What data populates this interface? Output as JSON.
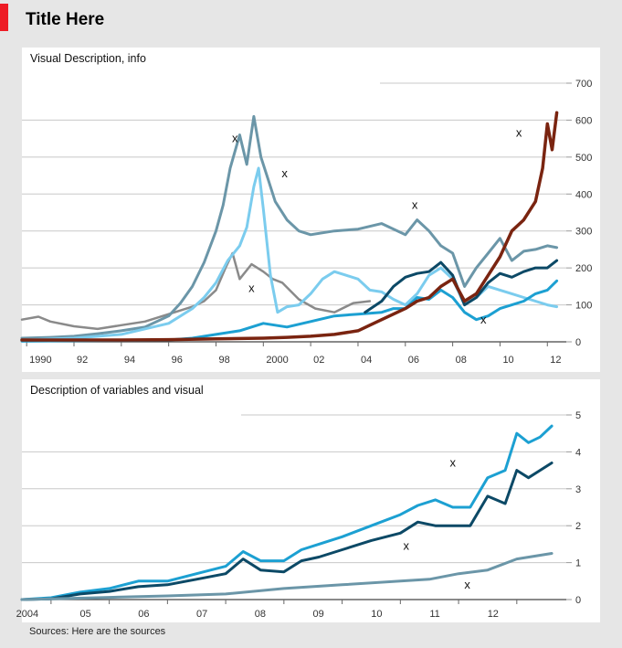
{
  "header": {
    "title": "Title Here",
    "accent_color": "#ee1c25"
  },
  "sources": "Sources: Here are the sources",
  "chart_data": [
    {
      "type": "line",
      "title": "Visual Description, info",
      "x_ticks": [
        "1990",
        "92",
        "94",
        "96",
        "98",
        "2000",
        "02",
        "04",
        "06",
        "08",
        "10",
        "12"
      ],
      "xlim": [
        1989.8,
        2012.8
      ],
      "ylim": [
        0,
        700
      ],
      "y_ticks": [
        0,
        100,
        200,
        300,
        400,
        500,
        600,
        700
      ],
      "grid": true,
      "series": [
        {
          "color": "#8a8a8a",
          "width": 2.5,
          "x": [
            1989.8,
            1990.5,
            1991,
            1992,
            1993,
            1994,
            1995,
            1996,
            1997,
            1997.5,
            1998,
            1998.4,
            1998.7,
            1999,
            1999.5,
            2000,
            2000.4,
            2000.8,
            2001.5,
            2002.2,
            2003,
            2003.8,
            2004.5
          ],
          "y": [
            60,
            68,
            55,
            42,
            35,
            45,
            55,
            75,
            95,
            110,
            140,
            200,
            240,
            170,
            210,
            190,
            170,
            160,
            115,
            90,
            80,
            105,
            110
          ]
        },
        {
          "color": "#6b96a8",
          "width": 3,
          "x": [
            1989.8,
            1991,
            1992,
            1993,
            1994,
            1995,
            1996,
            1996.5,
            1997,
            1997.5,
            1998,
            1998.3,
            1998.6,
            1999,
            1999.3,
            1999.6,
            1999.9,
            2000.2,
            2000.5,
            2001,
            2001.5,
            2002,
            2003,
            2004,
            2005,
            2006,
            2006.5,
            2007,
            2007.5,
            2008,
            2008.5,
            2009,
            2009.5,
            2010,
            2010.5,
            2011,
            2011.5,
            2012,
            2012.4
          ],
          "y": [
            10,
            12,
            15,
            22,
            30,
            40,
            70,
            105,
            150,
            215,
            300,
            370,
            470,
            560,
            480,
            610,
            500,
            440,
            380,
            330,
            300,
            290,
            300,
            305,
            320,
            290,
            330,
            300,
            260,
            240,
            150,
            200,
            240,
            280,
            220,
            245,
            250,
            260,
            255
          ]
        },
        {
          "color": "#7bccee",
          "width": 3,
          "x": [
            1989.8,
            1992,
            1994,
            1996,
            1997,
            1997.5,
            1998,
            1998.5,
            1999,
            1999.3,
            1999.6,
            1999.8,
            2000,
            2000.3,
            2000.6,
            2001,
            2001.5,
            2002,
            2002.5,
            2003,
            2003.5,
            2004,
            2004.5,
            2005,
            2005.5,
            2006,
            2006.5,
            2007,
            2007.5,
            2008,
            2008.5,
            2009,
            2009.5,
            2010,
            2010.5,
            2011,
            2011.5,
            2012,
            2012.4
          ],
          "y": [
            5,
            10,
            20,
            50,
            90,
            120,
            160,
            220,
            260,
            310,
            420,
            470,
            360,
            180,
            80,
            95,
            100,
            130,
            170,
            190,
            180,
            170,
            140,
            135,
            115,
            100,
            130,
            180,
            200,
            170,
            100,
            120,
            150,
            140,
            130,
            120,
            110,
            100,
            95
          ]
        },
        {
          "color": "#1ca0d2",
          "width": 3,
          "x": [
            1989.8,
            1996,
            1997,
            1998,
            1999,
            2000,
            2000.5,
            2001,
            2002,
            2003,
            2004,
            2005,
            2005.5,
            2006,
            2006.5,
            2007,
            2007.5,
            2008,
            2008.5,
            2009,
            2009.5,
            2010,
            2010.5,
            2011,
            2011.5,
            2012,
            2012.4
          ],
          "y": [
            2,
            5,
            10,
            20,
            30,
            50,
            45,
            40,
            55,
            70,
            75,
            80,
            90,
            90,
            120,
            115,
            140,
            120,
            80,
            60,
            70,
            90,
            100,
            110,
            130,
            140,
            165
          ]
        },
        {
          "color": "#0c4966",
          "width": 3,
          "x": [
            2004.3,
            2005,
            2005.5,
            2006,
            2006.5,
            2007,
            2007.5,
            2008,
            2008.5,
            2009,
            2009.5,
            2010,
            2010.5,
            2011,
            2011.5,
            2012,
            2012.4
          ],
          "y": [
            80,
            110,
            150,
            175,
            185,
            190,
            215,
            180,
            100,
            120,
            160,
            185,
            175,
            190,
            200,
            200,
            220
          ]
        },
        {
          "color": "#7a2410",
          "width": 3.5,
          "x": [
            1989.8,
            1992,
            1994,
            1996,
            1998,
            2000,
            2001,
            2002,
            2003,
            2004,
            2004.5,
            2005,
            2006,
            2006.5,
            2007,
            2007.5,
            2008,
            2008.5,
            2009,
            2009.5,
            2010,
            2010.5,
            2011,
            2011.5,
            2011.8,
            2012,
            2012.2,
            2012.4
          ],
          "y": [
            5,
            5,
            5,
            6,
            8,
            10,
            12,
            15,
            20,
            30,
            45,
            60,
            90,
            110,
            120,
            150,
            170,
            110,
            130,
            180,
            230,
            300,
            330,
            380,
            470,
            590,
            520,
            620
          ]
        }
      ],
      "annotations": [
        {
          "text": "x",
          "x": 1998.8,
          "y": 540
        },
        {
          "text": "x",
          "x": 2000.9,
          "y": 445
        },
        {
          "text": "x",
          "x": 1999.5,
          "y": 135
        },
        {
          "text": "x",
          "x": 2006.4,
          "y": 360
        },
        {
          "text": "x",
          "x": 2009.3,
          "y": 50
        },
        {
          "text": "x",
          "x": 2010.8,
          "y": 555
        }
      ]
    },
    {
      "type": "line",
      "title": "Description of variables and visual",
      "x_ticks": [
        "2004",
        "05",
        "06",
        "07",
        "08",
        "09",
        "10",
        "11",
        "12"
      ],
      "xlim": [
        2003.5,
        2012.85
      ],
      "ylim": [
        0,
        5
      ],
      "y_ticks": [
        0,
        1,
        2,
        3,
        4,
        5
      ],
      "grid": true,
      "series": [
        {
          "color": "#1ca0d2",
          "width": 3,
          "x": [
            2003.5,
            2004,
            2004.5,
            2005,
            2005.5,
            2006,
            2006.5,
            2007,
            2007.3,
            2007.6,
            2008,
            2008.3,
            2008.6,
            2009,
            2009.5,
            2010,
            2010.3,
            2010.6,
            2010.9,
            2011.2,
            2011.5,
            2011.8,
            2012,
            2012.2,
            2012.4,
            2012.6
          ],
          "y": [
            0,
            0.05,
            0.2,
            0.3,
            0.5,
            0.5,
            0.7,
            0.9,
            1.3,
            1.05,
            1.05,
            1.35,
            1.5,
            1.7,
            2.0,
            2.3,
            2.55,
            2.7,
            2.5,
            2.5,
            3.3,
            3.5,
            4.5,
            4.25,
            4.4,
            4.7
          ]
        },
        {
          "color": "#0c4966",
          "width": 3,
          "x": [
            2003.5,
            2004,
            2004.5,
            2005,
            2005.5,
            2006,
            2006.5,
            2007,
            2007.3,
            2007.6,
            2008,
            2008.3,
            2008.6,
            2009,
            2009.5,
            2010,
            2010.3,
            2010.6,
            2010.9,
            2011.2,
            2011.5,
            2011.8,
            2012,
            2012.2,
            2012.4,
            2012.6
          ],
          "y": [
            0,
            0.02,
            0.15,
            0.22,
            0.35,
            0.4,
            0.55,
            0.7,
            1.1,
            0.8,
            0.75,
            1.05,
            1.15,
            1.35,
            1.6,
            1.8,
            2.1,
            2.0,
            2.0,
            2.0,
            2.8,
            2.6,
            3.5,
            3.3,
            3.5,
            3.7
          ]
        },
        {
          "color": "#6b96a8",
          "width": 3,
          "x": [
            2003.5,
            2004,
            2005,
            2006,
            2007,
            2008,
            2009,
            2010,
            2010.5,
            2011,
            2011.5,
            2012,
            2012.6
          ],
          "y": [
            0,
            0.02,
            0.06,
            0.1,
            0.15,
            0.3,
            0.4,
            0.5,
            0.55,
            0.7,
            0.8,
            1.1,
            1.25
          ]
        }
      ],
      "annotations": [
        {
          "text": "x",
          "x": 2010.9,
          "y": 3.6
        },
        {
          "text": "x",
          "x": 2010.1,
          "y": 1.35
        },
        {
          "text": "x",
          "x": 2011.15,
          "y": 0.3
        }
      ]
    }
  ]
}
